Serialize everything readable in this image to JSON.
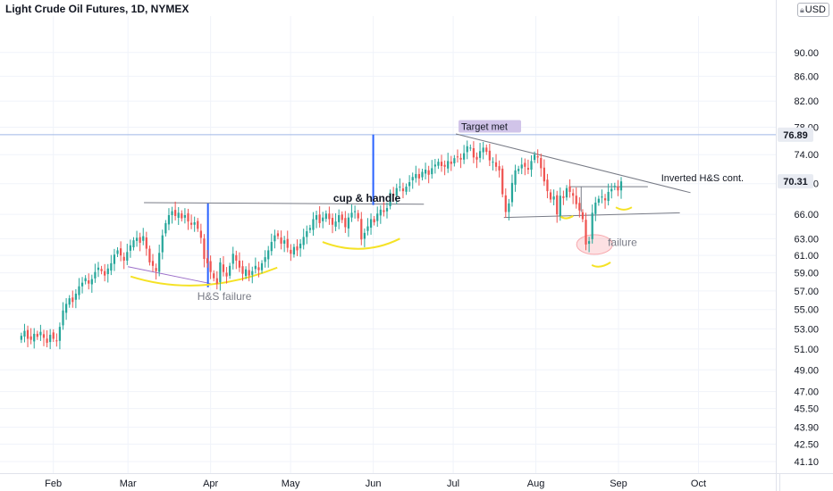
{
  "title": "Light Crude Oil Futures, 1D, NYMEX",
  "currency": "USD",
  "colors": {
    "up": "#26a69a",
    "down": "#ef5350",
    "trendline": "#787b86",
    "marker": "#2962ff",
    "curve": "#f5e225",
    "price_line": "#9fb8e6",
    "label_current": "#131722",
    "label_marked": "#131722"
  },
  "chart_data": {
    "type": "candlestick",
    "y_scale": "log",
    "ylim": [
      40.2,
      96.5
    ],
    "y_ticks": [
      "90.00",
      "86.00",
      "82.00",
      "78.00",
      "74.00",
      "70.00",
      "66.00",
      "63.00",
      "61.00",
      "59.00",
      "57.00",
      "55.00",
      "53.00",
      "51.00",
      "49.00",
      "47.00",
      "45.50",
      "43.90",
      "42.50",
      "41.10"
    ],
    "x_ticks": [
      "Feb",
      "Mar",
      "Apr",
      "May",
      "Jun",
      "Jul",
      "Aug",
      "Sep",
      "Oct"
    ],
    "price_labels": [
      {
        "value": "76.89",
        "style": "marked"
      },
      {
        "value": "70.31",
        "style": "current"
      }
    ],
    "annotations": [
      {
        "text": "cup & handle"
      },
      {
        "text": "Target met"
      },
      {
        "text": "Inverted H&S cont."
      },
      {
        "text": "H&S failure"
      },
      {
        "text": "failure"
      }
    ],
    "closes": [
      52.3,
      52.8,
      52.0,
      51.9,
      52.5,
      52.2,
      52.7,
      52.1,
      51.6,
      52.4,
      52.0,
      51.8,
      53.2,
      54.9,
      55.6,
      56.2,
      55.8,
      56.7,
      57.5,
      57.9,
      58.4,
      57.8,
      58.3,
      59.1,
      59.6,
      59.2,
      58.7,
      59.5,
      60.1,
      61.1,
      61.6,
      61.0,
      60.4,
      61.4,
      62.2,
      62.8,
      63.1,
      62.5,
      63.3,
      61.8,
      60.2,
      59.8,
      59.2,
      61.3,
      63.4,
      64.9,
      65.9,
      66.4,
      65.8,
      66.2,
      65.5,
      65.9,
      65.1,
      64.7,
      65.0,
      64.2,
      63.1,
      60.6,
      60.1,
      59.1,
      58.4,
      57.8,
      60.2,
      59.1,
      58.6,
      59.8,
      61.2,
      60.4,
      59.6,
      58.9,
      59.4,
      58.7,
      59.2,
      59.8,
      59.3,
      60.1,
      60.8,
      61.6,
      62.6,
      63.4,
      63.3,
      62.4,
      62.8,
      61.9,
      61.2,
      62.0,
      61.6,
      62.4,
      63.2,
      63.9,
      64.3,
      65.4,
      65.9,
      64.9,
      65.6,
      66.1,
      65.4,
      64.7,
      65.1,
      65.9,
      65.3,
      64.4,
      65.6,
      66.2,
      66.4,
      65.5,
      62.9,
      63.7,
      64.5,
      65.4,
      65.0,
      66.1,
      66.6,
      66.3,
      66.8,
      68.8,
      68.4,
      69.4,
      69.6,
      69.0,
      69.6,
      70.2,
      70.9,
      71.3,
      70.7,
      71.6,
      71.9,
      71.2,
      72.1,
      72.6,
      73.0,
      72.4,
      72.3,
      73.1,
      72.7,
      73.5,
      73.7,
      73.3,
      74.2,
      75.2,
      75.0,
      73.6,
      73.3,
      74.5,
      75.0,
      74.4,
      73.2,
      73.0,
      72.3,
      71.8,
      68.6,
      66.3,
      67.4,
      70.1,
      71.8,
      72.0,
      72.6,
      72.3,
      71.9,
      73.1,
      74.0,
      73.6,
      72.1,
      70.3,
      69.0,
      67.9,
      68.3,
      66.0,
      68.4,
      68.1,
      69.4,
      68.9,
      68.4,
      67.3,
      66.5,
      65.4,
      62.3,
      62.7,
      66.2,
      67.5,
      68.0,
      68.3,
      67.8,
      68.9,
      69.3,
      69.7,
      69.1,
      70.3
    ],
    "x_start": "2021-01-20",
    "x_end": "2021-09-02"
  }
}
